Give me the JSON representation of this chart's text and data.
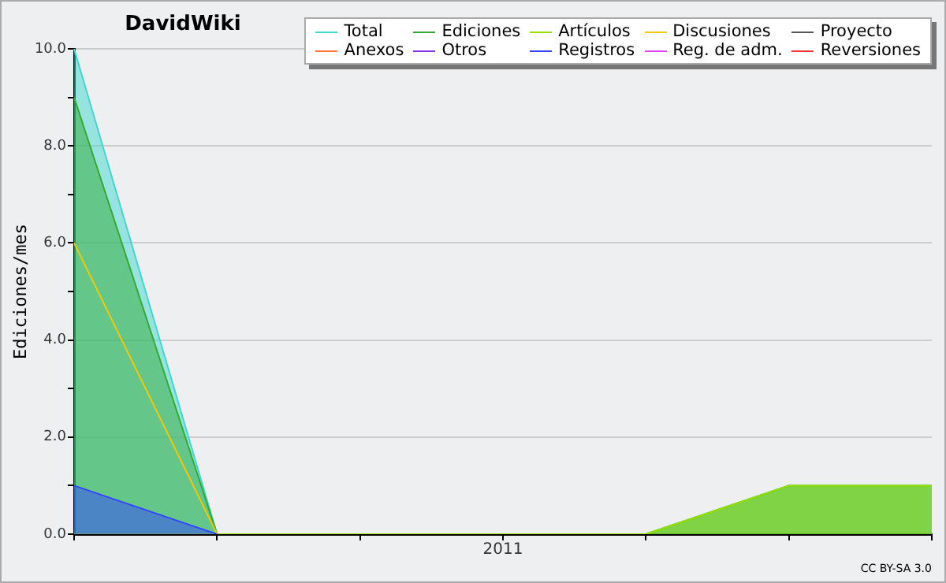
{
  "chart_data": {
    "type": "area",
    "title": "DavidWiki",
    "ylabel": "Ediciones/mes",
    "categories": [
      null,
      null,
      null,
      "2011",
      null,
      null,
      null
    ],
    "ylim": [
      0,
      10
    ],
    "yticks": [
      {
        "value": 0,
        "label": "0.0"
      },
      {
        "value": 1,
        "label": null
      },
      {
        "value": 2,
        "label": "2.0"
      },
      {
        "value": 3,
        "label": null
      },
      {
        "value": 4,
        "label": "4.0"
      },
      {
        "value": 5,
        "label": null
      },
      {
        "value": 6,
        "label": "6.0"
      },
      {
        "value": 7,
        "label": null
      },
      {
        "value": 8,
        "label": "8.0"
      },
      {
        "value": 9,
        "label": null
      },
      {
        "value": 10,
        "label": "10.0"
      }
    ],
    "grid": "y",
    "legend": "top right",
    "marker": "none",
    "annotations": [
      "CC BY-SA 3.0"
    ],
    "series": [
      {
        "name": "Total",
        "color": "#40d8d0",
        "values": [
          10,
          0,
          0,
          0,
          0,
          1,
          1
        ]
      },
      {
        "name": "Ediciones",
        "color": "#33aa33",
        "values": [
          9,
          0,
          0,
          0,
          0,
          1,
          1
        ]
      },
      {
        "name": "Artículos",
        "color": "#99e000",
        "values": [
          0,
          0,
          0,
          0,
          0,
          1,
          1
        ]
      },
      {
        "name": "Discusiones",
        "color": "#f5c800",
        "type": "line",
        "values": [
          6,
          0,
          null,
          null,
          null,
          null,
          null
        ]
      },
      {
        "name": "Proyecto",
        "color": "#555555",
        "type": "line",
        "values": [
          null,
          null,
          null,
          null,
          null,
          null,
          null
        ]
      },
      {
        "name": "Anexos",
        "color": "#ff7733",
        "type": "line",
        "values": [
          null,
          null,
          null,
          null,
          null,
          null,
          null
        ]
      },
      {
        "name": "Otros",
        "color": "#8833ee",
        "type": "line",
        "values": [
          null,
          null,
          null,
          null,
          null,
          null,
          null
        ]
      },
      {
        "name": "Registros",
        "color": "#3344ff",
        "values": [
          1,
          0,
          null,
          null,
          null,
          null,
          null
        ]
      },
      {
        "name": "Reg. de adm.",
        "color": "#dd44ff",
        "type": "line",
        "values": [
          null,
          null,
          null,
          null,
          null,
          null,
          null
        ]
      },
      {
        "name": "Reversiones",
        "color": "#ff3333",
        "type": "line",
        "values": [
          null,
          null,
          null,
          null,
          null,
          null,
          null
        ]
      }
    ]
  }
}
